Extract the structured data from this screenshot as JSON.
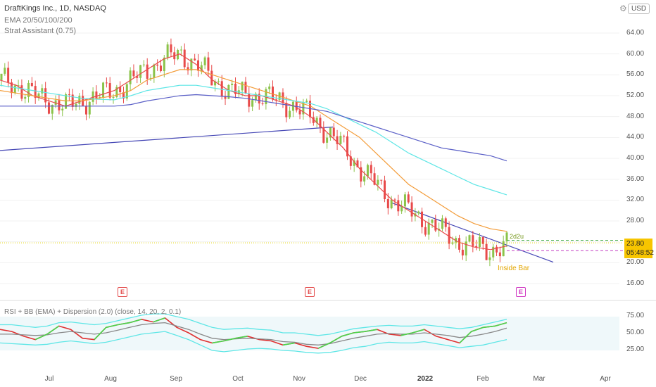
{
  "header": {
    "title": "DraftKings Inc., 1D, NASDAQ",
    "indicator1": "EMA 20/50/100/200",
    "indicator2": "Strat Assistant (0.75)"
  },
  "currency_button": "USD",
  "price_tag": {
    "price": "23.80",
    "countdown": "05:48:52"
  },
  "rsi_header": "RSI + BB (EMA) + Dispersion (2.0) (close, 14, 20, 2, 0.1)",
  "annotations": {
    "inside_bar": "Inside Bar",
    "pattern": "2d2u"
  },
  "earnings": [
    {
      "label": "E",
      "date": "Aug",
      "future": false
    },
    {
      "label": "E",
      "date": "Nov",
      "future": false
    },
    {
      "label": "E",
      "date": "Feb",
      "future": true
    }
  ],
  "colors": {
    "up": "#8bc34a",
    "down": "#e84a4a",
    "ema20": "#e84a4a",
    "ema50": "#f39c39",
    "ema100": "#5ee6e6",
    "ema200": "#5a5fc7",
    "trend": "#4547b5",
    "price_line": "#e3d400",
    "rsi_fast": "#47d64b",
    "rsi_slow": "#e03131",
    "bb": "#5ee6e6",
    "basis": "#888888"
  },
  "chart_data": [
    {
      "type": "line",
      "subtype": "candlestick",
      "title": "DraftKings Inc., 1D, NASDAQ",
      "y_ticks": [
        "64.00",
        "60.00",
        "56.00",
        "52.00",
        "48.00",
        "44.00",
        "40.00",
        "36.00",
        "32.00",
        "28.00",
        "24.00",
        "20.00",
        "16.00"
      ],
      "x_ticks": [
        "Jul",
        "Aug",
        "Sep",
        "Oct",
        "Nov",
        "Dec",
        "2022",
        "Feb",
        "Mar",
        "Apr"
      ],
      "ylim": [
        14,
        67
      ],
      "series": [
        {
          "name": "EMA 20",
          "values": [
            55,
            54,
            52,
            51,
            50,
            51,
            52,
            53,
            55,
            57,
            59,
            60,
            58,
            55,
            53,
            52,
            52,
            51,
            50,
            48,
            45,
            42,
            38,
            35,
            32,
            30,
            28,
            26,
            24,
            23,
            22.5,
            23.2
          ]
        },
        {
          "name": "EMA 50",
          "values": [
            53,
            52.5,
            52,
            51.5,
            51,
            51,
            51.5,
            52,
            53,
            55,
            56,
            57,
            57,
            56,
            55,
            54,
            53,
            52,
            51,
            50,
            48,
            46,
            44,
            41,
            38,
            35,
            33,
            31,
            29,
            27.5,
            26.5,
            26
          ]
        },
        {
          "name": "EMA 100",
          "values": [
            54,
            53.5,
            53,
            52.5,
            52,
            51.5,
            51.3,
            51.2,
            52,
            53,
            53.5,
            54,
            54,
            53.5,
            53,
            52.5,
            52,
            51.5,
            51,
            50.5,
            49.5,
            48,
            46.5,
            45,
            43,
            41,
            39.5,
            38,
            36.5,
            35,
            34,
            33
          ]
        },
        {
          "name": "EMA 200",
          "values": [
            50,
            50,
            50,
            50,
            50,
            50,
            50,
            50,
            50.3,
            51,
            51.5,
            52,
            52.2,
            52,
            51.8,
            51.5,
            51,
            50.5,
            50,
            49.5,
            49,
            48,
            47,
            46,
            45,
            44,
            43,
            42,
            41.5,
            41,
            40.5,
            39.5
          ]
        }
      ],
      "last_price": 23.8
    },
    {
      "type": "line",
      "title": "RSI + BB (EMA) + Dispersion (2.0) (close, 14, 20, 2, 0.1)",
      "y_ticks": [
        "75.00",
        "50.00",
        "25.00"
      ],
      "ylim": [
        15,
        85
      ],
      "series": [
        {
          "name": "RSI",
          "values": [
            55,
            52,
            45,
            40,
            48,
            60,
            55,
            42,
            40,
            58,
            62,
            65,
            70,
            66,
            72,
            58,
            50,
            40,
            35,
            38,
            42,
            45,
            40,
            38,
            32,
            35,
            30,
            27,
            35,
            45,
            50,
            52,
            55,
            48,
            46,
            50,
            55,
            45,
            40,
            35,
            52,
            58,
            60,
            65
          ]
        },
        {
          "name": "Basis",
          "values": [
            48,
            48,
            47,
            46,
            47,
            50,
            52,
            50,
            48,
            50,
            54,
            58,
            62,
            64,
            65,
            60,
            55,
            48,
            42,
            40,
            41,
            42,
            41,
            40,
            37,
            36,
            33,
            32,
            34,
            38,
            42,
            45,
            48,
            49,
            48,
            48,
            50,
            48,
            46,
            43,
            45,
            48,
            52,
            57
          ]
        },
        {
          "name": "Upper",
          "values": [
            62,
            62,
            60,
            58,
            60,
            65,
            66,
            64,
            62,
            64,
            68,
            72,
            76,
            78,
            78,
            74,
            70,
            64,
            58,
            55,
            56,
            57,
            55,
            54,
            50,
            50,
            48,
            46,
            48,
            52,
            56,
            58,
            60,
            61,
            60,
            60,
            62,
            60,
            58,
            56,
            58,
            62,
            66,
            70
          ]
        },
        {
          "name": "Lower",
          "values": [
            35,
            34,
            33,
            32,
            33,
            36,
            38,
            36,
            34,
            36,
            40,
            44,
            48,
            50,
            52,
            46,
            40,
            32,
            24,
            22,
            24,
            26,
            27,
            26,
            24,
            23,
            21,
            20,
            21,
            24,
            28,
            30,
            34,
            36,
            35,
            35,
            37,
            34,
            31,
            28,
            30,
            32,
            36,
            40
          ]
        }
      ]
    }
  ]
}
